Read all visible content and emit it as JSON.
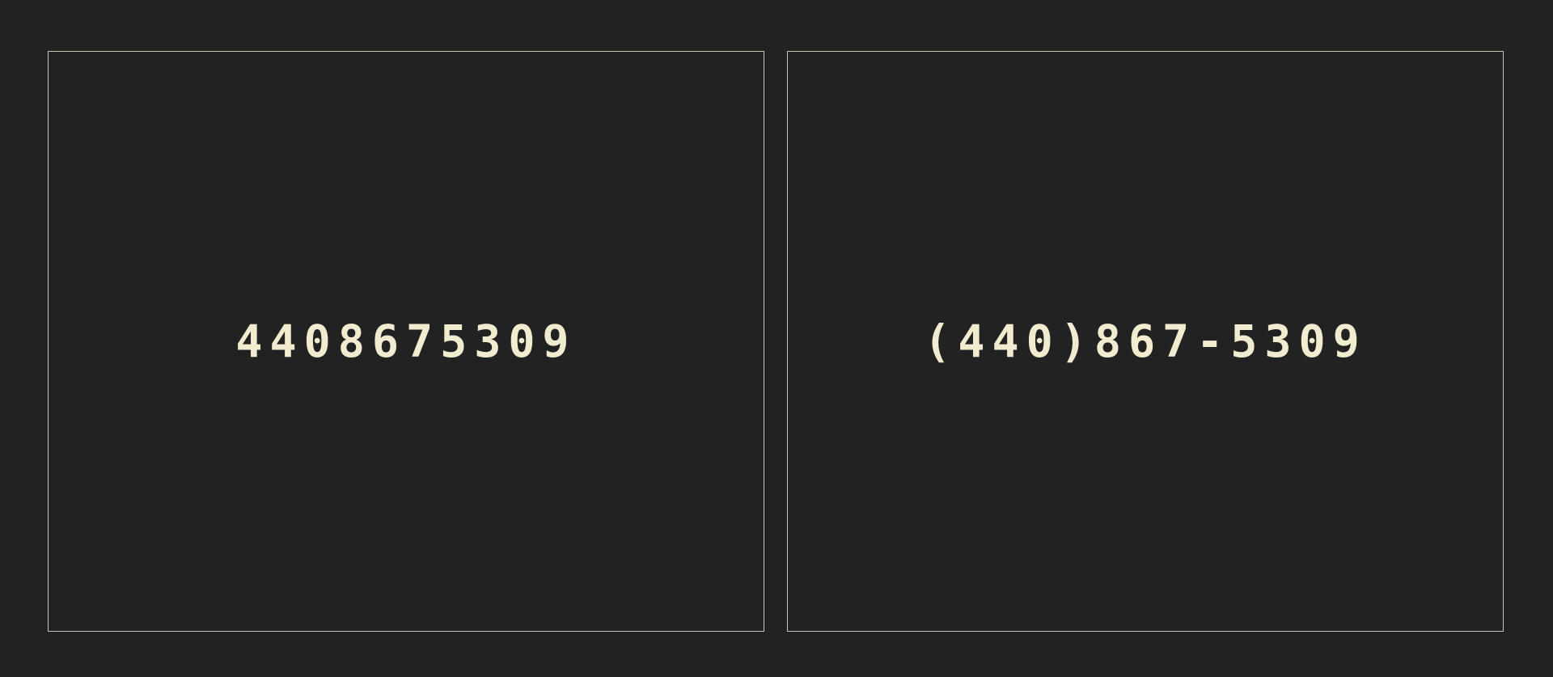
{
  "panels": [
    {
      "name": "raw-phone-number",
      "text": "4408675309"
    },
    {
      "name": "formatted-phone-number",
      "text": "(440)867-5309"
    }
  ],
  "colors": {
    "background": "#222222",
    "panel_border": "#c9c6b4",
    "text": "#f1ecd0"
  }
}
